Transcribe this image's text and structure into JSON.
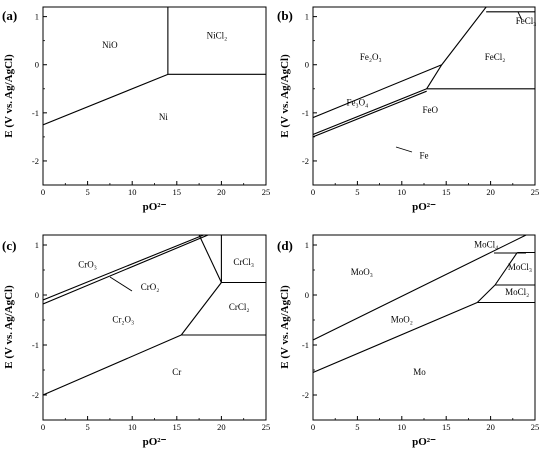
{
  "chart_data": [
    {
      "type": "line",
      "panel_label": "(a)",
      "xlabel": "pO²⁻",
      "ylabel": "E (V vs. Ag/AgCl)",
      "xlim": [
        0,
        25
      ],
      "ylim": [
        -2.5,
        1.2
      ],
      "xticks": [
        "0",
        "5",
        "10",
        "15",
        "20",
        "25"
      ],
      "yticks": [
        "-2",
        "-1",
        "0",
        "1"
      ],
      "lines": [
        {
          "x": [
            0,
            14
          ],
          "y": [
            -1.25,
            -0.2
          ]
        },
        {
          "x": [
            14,
            25
          ],
          "y": [
            -0.2,
            -0.2
          ]
        },
        {
          "x": [
            14,
            14
          ],
          "y": [
            -0.2,
            1.2
          ]
        }
      ],
      "regions": [
        {
          "text": "NiO",
          "x": 7.5,
          "y": 0.35
        },
        {
          "text": "NiCl₂",
          "x": 19.5,
          "y": 0.55
        },
        {
          "text": "Ni",
          "x": 13.5,
          "y": -1.15
        }
      ]
    },
    {
      "type": "line",
      "panel_label": "(b)",
      "xlabel": "pO²⁻",
      "ylabel": "E (V vs. Ag/AgCl)",
      "xlim": [
        0,
        25
      ],
      "ylim": [
        -2.5,
        1.2
      ],
      "xticks": [
        "0",
        "5",
        "10",
        "15",
        "20",
        "25"
      ],
      "yticks": [
        "-2",
        "-1",
        "0",
        "1"
      ],
      "lines": [
        {
          "x": [
            0,
            14.5
          ],
          "y": [
            -1.1,
            0.0
          ]
        },
        {
          "x": [
            14.5,
            19.5
          ],
          "y": [
            0.0,
            1.2
          ]
        },
        {
          "x": [
            19.5,
            25
          ],
          "y": [
            1.1,
            1.1
          ]
        },
        {
          "x": [
            0,
            12.8
          ],
          "y": [
            -1.45,
            -0.5
          ]
        },
        {
          "x": [
            0,
            12.8
          ],
          "y": [
            -1.5,
            -0.55
          ]
        },
        {
          "x": [
            12.8,
            25
          ],
          "y": [
            -0.5,
            -0.5
          ]
        },
        {
          "x": [
            12.8,
            14.5
          ],
          "y": [
            -0.5,
            0.0
          ]
        }
      ],
      "regions": [
        {
          "text": "Fe₂O₃",
          "x": 6.5,
          "y": 0.1
        },
        {
          "text": "FeCl₂",
          "x": 20.5,
          "y": 0.1
        },
        {
          "text": "Fe₃O₄",
          "x": 5,
          "y": -0.85
        },
        {
          "text": "FeO",
          "x": 13.2,
          "y": -1.0
        },
        {
          "text": "FeCl₃",
          "x": 24,
          "y": 0.85
        },
        {
          "text": "Fe",
          "x": 12.5,
          "y": -1.95
        }
      ]
    },
    {
      "type": "line",
      "panel_label": "(c)",
      "xlabel": "pO²⁻",
      "ylabel": "E (V vs. Ag/AgCl)",
      "xlim": [
        0,
        25
      ],
      "ylim": [
        -2.5,
        1.2
      ],
      "xticks": [
        "0",
        "5",
        "10",
        "15",
        "20",
        "25"
      ],
      "yticks": [
        "-2",
        "-1",
        "0",
        "1"
      ],
      "lines": [
        {
          "x": [
            0,
            18
          ],
          "y": [
            -0.1,
            1.2
          ]
        },
        {
          "x": [
            0,
            18.5
          ],
          "y": [
            -0.18,
            1.2
          ]
        },
        {
          "x": [
            0,
            15.5
          ],
          "y": [
            -2.0,
            -0.8
          ]
        },
        {
          "x": [
            15.5,
            25
          ],
          "y": [
            -0.8,
            -0.8
          ]
        },
        {
          "x": [
            15.5,
            20
          ],
          "y": [
            -0.8,
            0.25
          ]
        },
        {
          "x": [
            20,
            25
          ],
          "y": [
            0.25,
            0.25
          ]
        },
        {
          "x": [
            20,
            20
          ],
          "y": [
            0.25,
            1.2
          ]
        },
        {
          "x": [
            20,
            17.5
          ],
          "y": [
            0.25,
            1.2
          ]
        }
      ],
      "regions": [
        {
          "text": "CrO₃",
          "x": 5,
          "y": 0.55
        },
        {
          "text": "CrO₂",
          "x": 12,
          "y": 0.1
        },
        {
          "text": "Cr₂O₃",
          "x": 9,
          "y": -0.55
        },
        {
          "text": "CrCl₃",
          "x": 22.5,
          "y": 0.6
        },
        {
          "text": "CrCl₂",
          "x": 22,
          "y": -0.3
        },
        {
          "text": "Cr",
          "x": 15,
          "y": -1.6
        }
      ]
    },
    {
      "type": "line",
      "panel_label": "(d)",
      "xlabel": "pO²⁻",
      "ylabel": "E (V vs. Ag/AgCl)",
      "xlim": [
        0,
        25
      ],
      "ylim": [
        -2.5,
        1.2
      ],
      "xticks": [
        "0",
        "5",
        "10",
        "15",
        "20",
        "25"
      ],
      "yticks": [
        "-2",
        "-1",
        "0",
        "1"
      ],
      "lines": [
        {
          "x": [
            0,
            24
          ],
          "y": [
            -0.9,
            1.2
          ]
        },
        {
          "x": [
            0,
            18.5
          ],
          "y": [
            -1.55,
            -0.15
          ]
        },
        {
          "x": [
            18.5,
            25
          ],
          "y": [
            -0.15,
            -0.15
          ]
        },
        {
          "x": [
            18.5,
            20.5
          ],
          "y": [
            -0.15,
            0.2
          ]
        },
        {
          "x": [
            20.5,
            25
          ],
          "y": [
            0.2,
            0.2
          ]
        },
        {
          "x": [
            20.5,
            23
          ],
          "y": [
            0.2,
            0.85
          ]
        },
        {
          "x": [
            23,
            25
          ],
          "y": [
            0.85,
            0.85
          ]
        }
      ],
      "regions": [
        {
          "text": "MoO₃",
          "x": 5.5,
          "y": 0.4
        },
        {
          "text": "MoO₂",
          "x": 10,
          "y": -0.55
        },
        {
          "text": "MoCl₄",
          "x": 19.5,
          "y": 0.95
        },
        {
          "text": "MoCl₃",
          "x": 23.3,
          "y": 0.5
        },
        {
          "text": "MoCl₂",
          "x": 23,
          "y": 0.0
        },
        {
          "text": "Mo",
          "x": 12,
          "y": -1.6
        }
      ]
    }
  ]
}
